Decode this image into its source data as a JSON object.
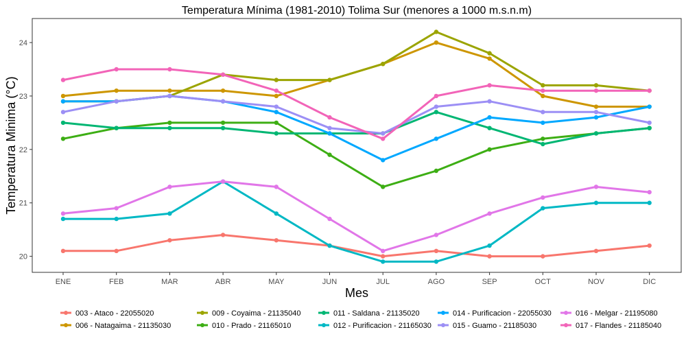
{
  "chart_data": {
    "type": "line",
    "title": "Temperatura Mínima (1981-2010) Tolima Sur (menores a 1000 m.s.n.m)",
    "xlabel": "Mes",
    "ylabel": "Temperatura Minima (°C)",
    "categories": [
      "ENE",
      "FEB",
      "MAR",
      "ABR",
      "MAY",
      "JUN",
      "JUL",
      "AGO",
      "SEP",
      "OCT",
      "NOV",
      "DIC"
    ],
    "ylim": [
      19.7,
      24.45
    ],
    "yticks": [
      20,
      21,
      22,
      23,
      24
    ],
    "grid": false,
    "legend_position": "bottom",
    "series": [
      {
        "name": "003 - Ataco - 22055020",
        "color": "#F8766D",
        "values": [
          20.1,
          20.1,
          20.3,
          20.4,
          20.3,
          20.2,
          20.0,
          20.1,
          20.0,
          20.0,
          20.1,
          20.2
        ]
      },
      {
        "name": "006 - Natagaima - 21135030",
        "color": "#CD9600",
        "values": [
          23.0,
          23.1,
          23.1,
          23.1,
          23.0,
          23.3,
          23.6,
          24.0,
          23.7,
          23.0,
          22.8,
          22.8
        ]
      },
      {
        "name": "009 - Coyaima - 21135040",
        "color": "#9BA400",
        "values": [
          22.9,
          22.9,
          23.0,
          23.4,
          23.3,
          23.3,
          23.6,
          24.2,
          23.8,
          23.2,
          23.2,
          23.1
        ]
      },
      {
        "name": "010 - Prado - 21165010",
        "color": "#3DAE14",
        "values": [
          22.2,
          22.4,
          22.5,
          22.5,
          22.5,
          21.9,
          21.3,
          21.6,
          22.0,
          22.2,
          22.3,
          22.4
        ]
      },
      {
        "name": "011 - Saldana - 21135020",
        "color": "#00B673",
        "values": [
          22.5,
          22.4,
          22.4,
          22.4,
          22.3,
          22.3,
          22.3,
          22.7,
          22.4,
          22.1,
          22.3,
          22.4
        ]
      },
      {
        "name": "012 - Purificacion - 21165030",
        "color": "#00B8C4",
        "values": [
          20.7,
          20.7,
          20.8,
          21.4,
          20.8,
          20.2,
          19.9,
          19.9,
          20.2,
          20.9,
          21.0,
          21.0
        ]
      },
      {
        "name": "014 - Purificacion - 22055030",
        "color": "#00A8FF",
        "values": [
          22.9,
          22.9,
          23.0,
          22.9,
          22.7,
          22.3,
          21.8,
          22.2,
          22.6,
          22.5,
          22.6,
          22.8
        ]
      },
      {
        "name": "015 - Guamo - 21185030",
        "color": "#9C8FF5",
        "values": [
          22.7,
          22.9,
          23.0,
          22.9,
          22.8,
          22.4,
          22.3,
          22.8,
          22.9,
          22.7,
          22.7,
          22.5
        ]
      },
      {
        "name": "016 - Melgar - 21195080",
        "color": "#E176E8",
        "values": [
          20.8,
          20.9,
          21.3,
          21.4,
          21.3,
          20.7,
          20.1,
          20.4,
          20.8,
          21.1,
          21.3,
          21.2
        ]
      },
      {
        "name": "017 - Flandes - 21185040",
        "color": "#F264B8",
        "values": [
          23.3,
          23.5,
          23.5,
          23.4,
          23.1,
          22.6,
          22.2,
          23.0,
          23.2,
          23.1,
          23.1,
          23.1
        ]
      }
    ]
  }
}
